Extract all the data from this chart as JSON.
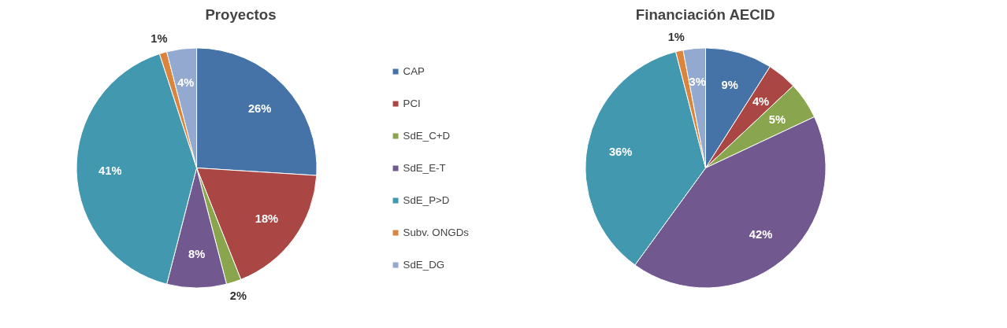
{
  "chart_data": [
    {
      "type": "pie",
      "title": "Proyectos",
      "categories": [
        "CAP",
        "PCI",
        "SdE_C+D",
        "SdE_E-T",
        "SdE_P>D",
        "Subv. ONGDs",
        "SdE_DG"
      ],
      "values": [
        26,
        18,
        2,
        8,
        41,
        1,
        4
      ],
      "value_labels": [
        "26%",
        "18%",
        "2%",
        "8%",
        "41%",
        "1%",
        "4%"
      ],
      "colors": [
        "#4572a7",
        "#aa4643",
        "#89a54e",
        "#71588f",
        "#4198af",
        "#db843d",
        "#93a9cf"
      ],
      "legend": "right"
    },
    {
      "type": "pie",
      "title": "Financiación AECID",
      "categories": [
        null,
        null,
        null,
        null,
        null,
        null,
        null
      ],
      "values": [
        9,
        4,
        5,
        42,
        36,
        1,
        3
      ],
      "value_labels": [
        "9%",
        "4%",
        "5%",
        "42%",
        "36%",
        "1%",
        "3%"
      ],
      "colors": [
        "#4572a7",
        "#aa4643",
        "#89a54e",
        "#71588f",
        "#4198af",
        "#db843d",
        "#93a9cf"
      ],
      "legend": false
    }
  ]
}
